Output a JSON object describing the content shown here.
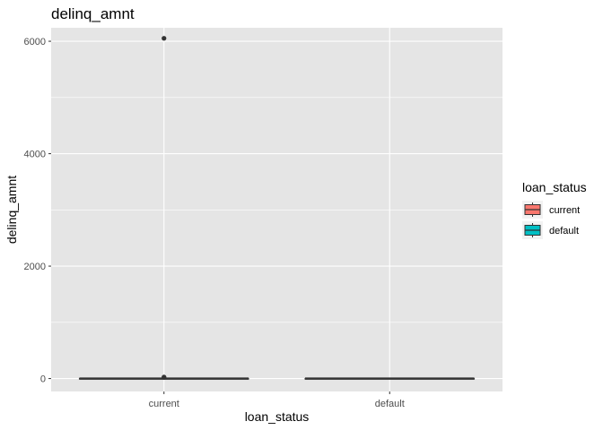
{
  "chart_data": {
    "type": "boxplot",
    "title": "delinq_amnt",
    "xlabel": "loan_status",
    "ylabel": "delinq_amnt",
    "categories": [
      "current",
      "default"
    ],
    "ylim": [
      -230,
      6240
    ],
    "yticks": [
      0,
      2000,
      4000,
      6000
    ],
    "grid": true,
    "boxes": [
      {
        "category": "current",
        "q1": 0,
        "median": 0,
        "q3": 0,
        "whisker_low": 0,
        "whisker_high": 0,
        "fill": "#F8766D",
        "outliers": [
          6053,
          27,
          20
        ]
      },
      {
        "category": "default",
        "q1": 0,
        "median": 0,
        "q3": 0,
        "whisker_low": 0,
        "whisker_high": 0,
        "fill": "#00BFC4",
        "outliers": []
      }
    ],
    "legend": {
      "title": "loan_status",
      "position": "right",
      "items": [
        {
          "label": "current",
          "color": "#F8766D"
        },
        {
          "label": "default",
          "color": "#00BFC4"
        }
      ]
    }
  },
  "colors": {
    "panel_background": "#E5E5E5",
    "grid_major": "#FFFFFF",
    "box_line": "#333333",
    "outlier": "#333333"
  }
}
